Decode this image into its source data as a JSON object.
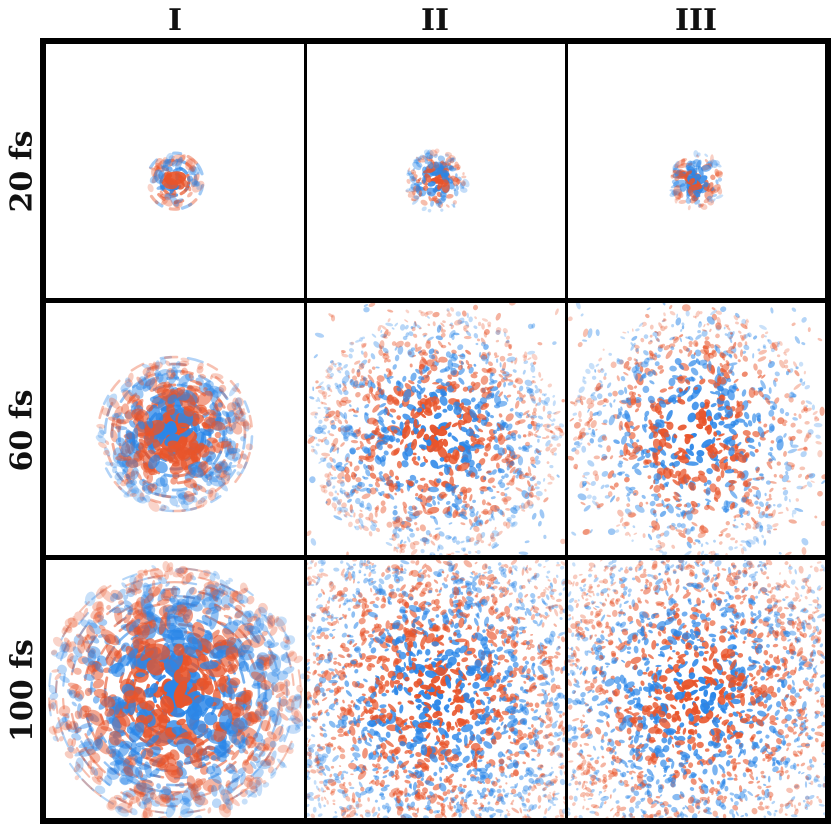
{
  "columns": [
    "I",
    "II",
    "III"
  ],
  "rows": [
    "20 fs",
    "60 fs",
    "100 fs"
  ],
  "colors": {
    "positive": "#e8542a",
    "negative": "#2a86e8",
    "grid": "#000000",
    "background": "#ffffff"
  }
}
